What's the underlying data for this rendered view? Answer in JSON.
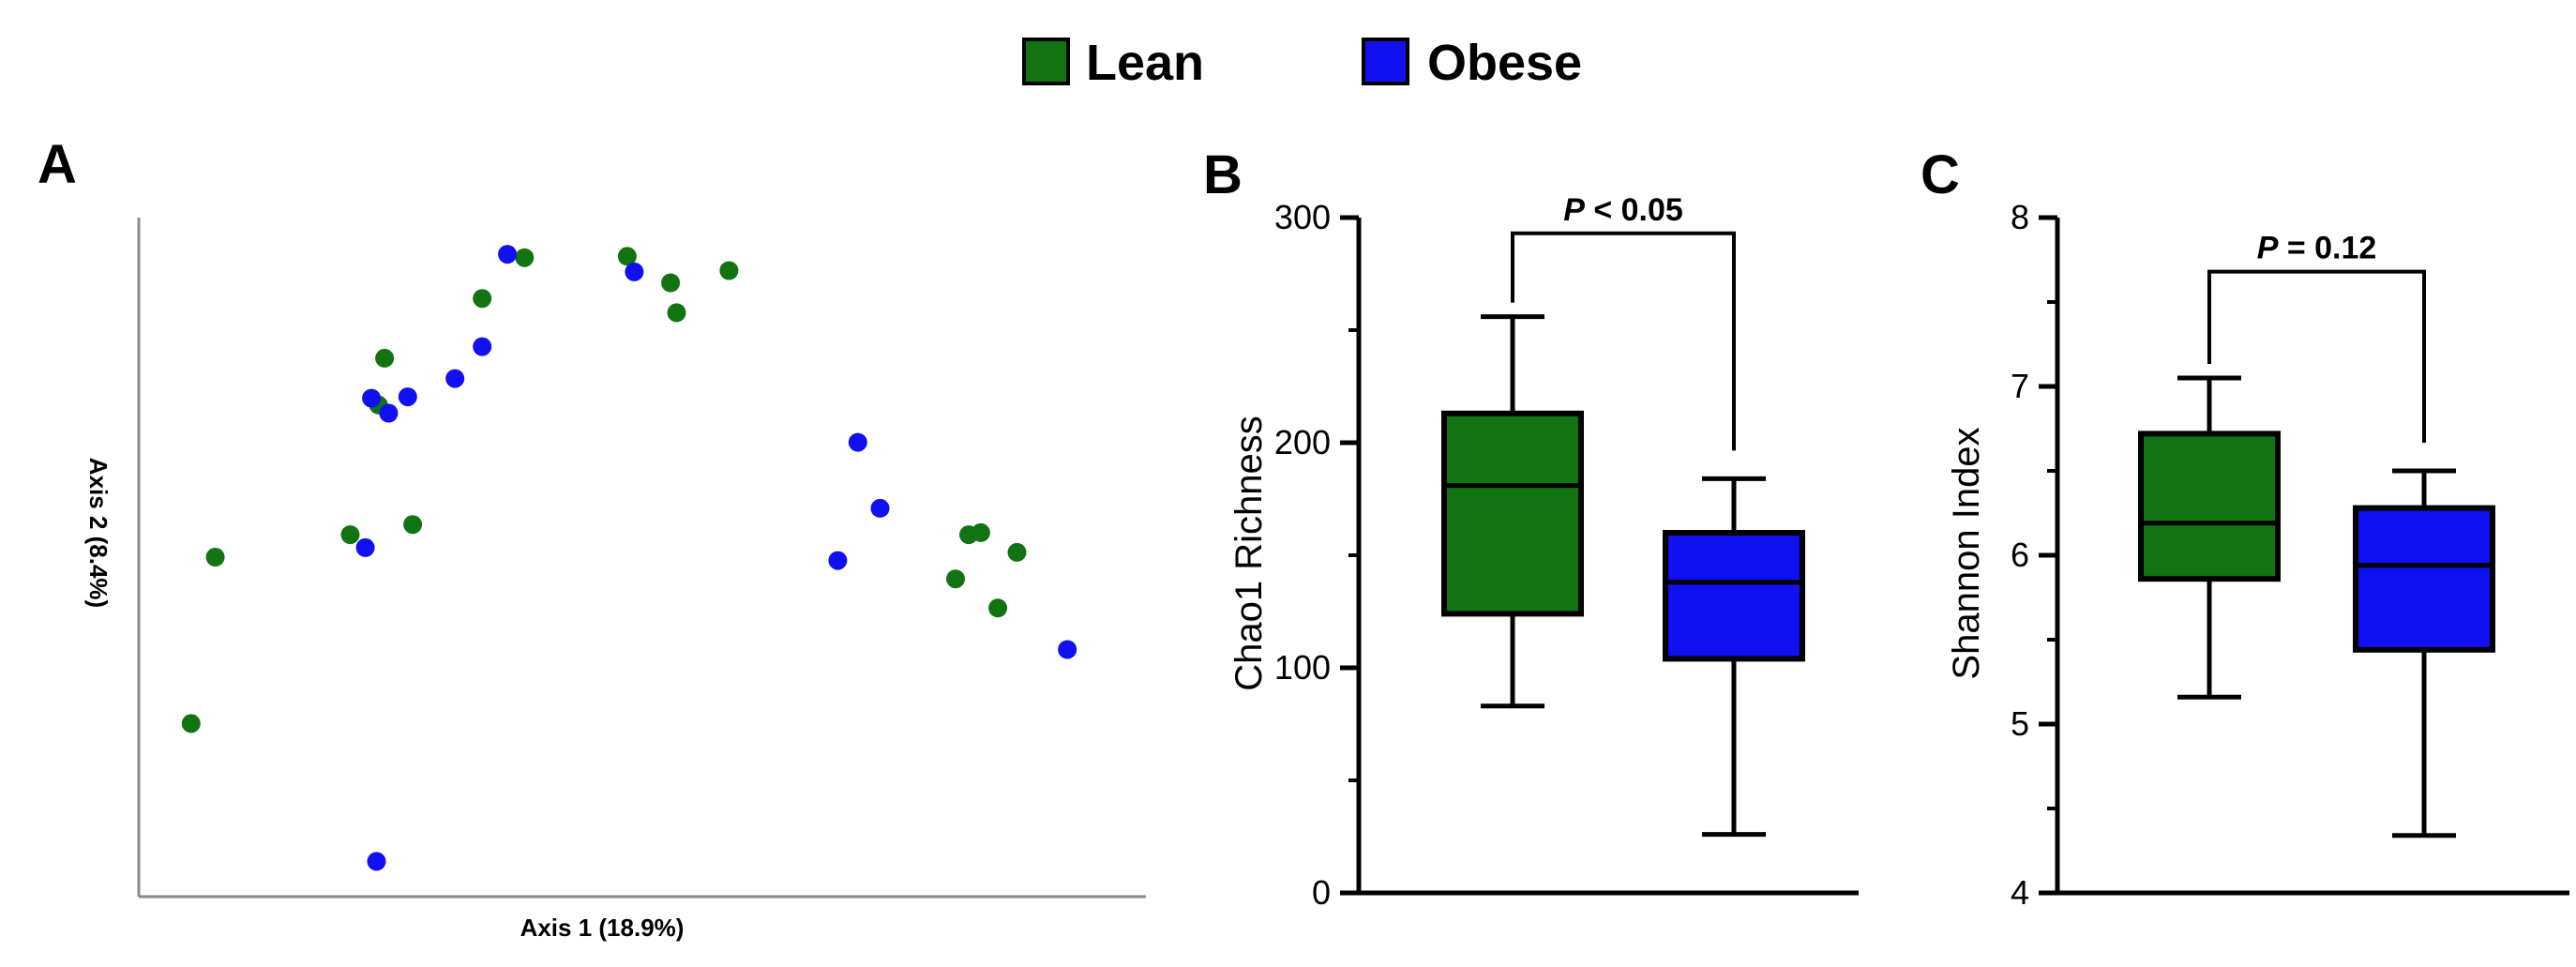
{
  "colors": {
    "lean": "#127312",
    "obese": "#1010f0"
  },
  "legend": {
    "items": [
      {
        "label": "Lean",
        "group": "lean"
      },
      {
        "label": "Obese",
        "group": "obese"
      }
    ]
  },
  "chart_data": [
    {
      "panel": "A",
      "type": "scatter",
      "title": "",
      "xlabel": "Axis 1 (18.9%)",
      "ylabel": "Axis 2 (8.4%)",
      "xlim": [
        0,
        100
      ],
      "ylim": [
        0,
        100
      ],
      "ticks_shown": false,
      "series": [
        {
          "name": "Lean",
          "group": "lean",
          "points": [
            [
              5.2,
              25.5
            ],
            [
              7.6,
              50
            ],
            [
              21,
              53.3
            ],
            [
              23.8,
              72.4
            ],
            [
              27.2,
              54.8
            ],
            [
              24.4,
              79.3
            ],
            [
              38.3,
              94.1
            ],
            [
              34.1,
              88.1
            ],
            [
              48.5,
              94.3
            ],
            [
              52.8,
              90.4
            ],
            [
              53.4,
              86
            ],
            [
              58.6,
              92.2
            ],
            [
              81.1,
              46.8
            ],
            [
              82.4,
              53.3
            ],
            [
              83.6,
              53.6
            ],
            [
              87.2,
              50.7
            ],
            [
              85.3,
              42.5
            ]
          ]
        },
        {
          "name": "Obese",
          "group": "obese",
          "points": [
            [
              23.6,
              5.2
            ],
            [
              26.7,
              73.6
            ],
            [
              24.8,
              71.2
            ],
            [
              22.5,
              51.4
            ],
            [
              23.1,
              73.4
            ],
            [
              31.4,
              76.3
            ],
            [
              34.1,
              81
            ],
            [
              36.6,
              94.6
            ],
            [
              49.2,
              92
            ],
            [
              71.4,
              66.9
            ],
            [
              69.4,
              49.5
            ],
            [
              73.6,
              57.2
            ],
            [
              92.2,
              36.4
            ]
          ]
        }
      ]
    },
    {
      "panel": "B",
      "type": "box",
      "title": "",
      "xlabel": "",
      "ylabel": "Chao1 Richness",
      "ylim": [
        0,
        300
      ],
      "yticks": [
        0,
        100,
        200,
        300
      ],
      "boxes": [
        {
          "name": "Lean",
          "group": "lean",
          "min": 83,
          "q1": 124,
          "median": 181,
          "q3": 213,
          "max": 256
        },
        {
          "name": "Obese",
          "group": "obese",
          "min": 26,
          "q1": 104,
          "median": 138,
          "q3": 160,
          "max": 184
        }
      ],
      "annotation": {
        "italic": "P",
        "rest": " < 0.05",
        "bracket_top": 293
      }
    },
    {
      "panel": "C",
      "type": "box",
      "title": "",
      "xlabel": "",
      "ylabel": "Shannon Index",
      "ylim": [
        4,
        8
      ],
      "yticks": [
        4,
        5,
        6,
        7,
        8
      ],
      "boxes": [
        {
          "name": "Lean",
          "group": "lean",
          "min": 5.16,
          "q1": 5.86,
          "median": 6.19,
          "q3": 6.72,
          "max": 7.05
        },
        {
          "name": "Obese",
          "group": "obese",
          "min": 4.34,
          "q1": 5.44,
          "median": 5.94,
          "q3": 6.28,
          "max": 6.5
        }
      ],
      "annotation": {
        "italic": "P",
        "rest": " = 0.12",
        "bracket_top": 7.68
      }
    }
  ]
}
